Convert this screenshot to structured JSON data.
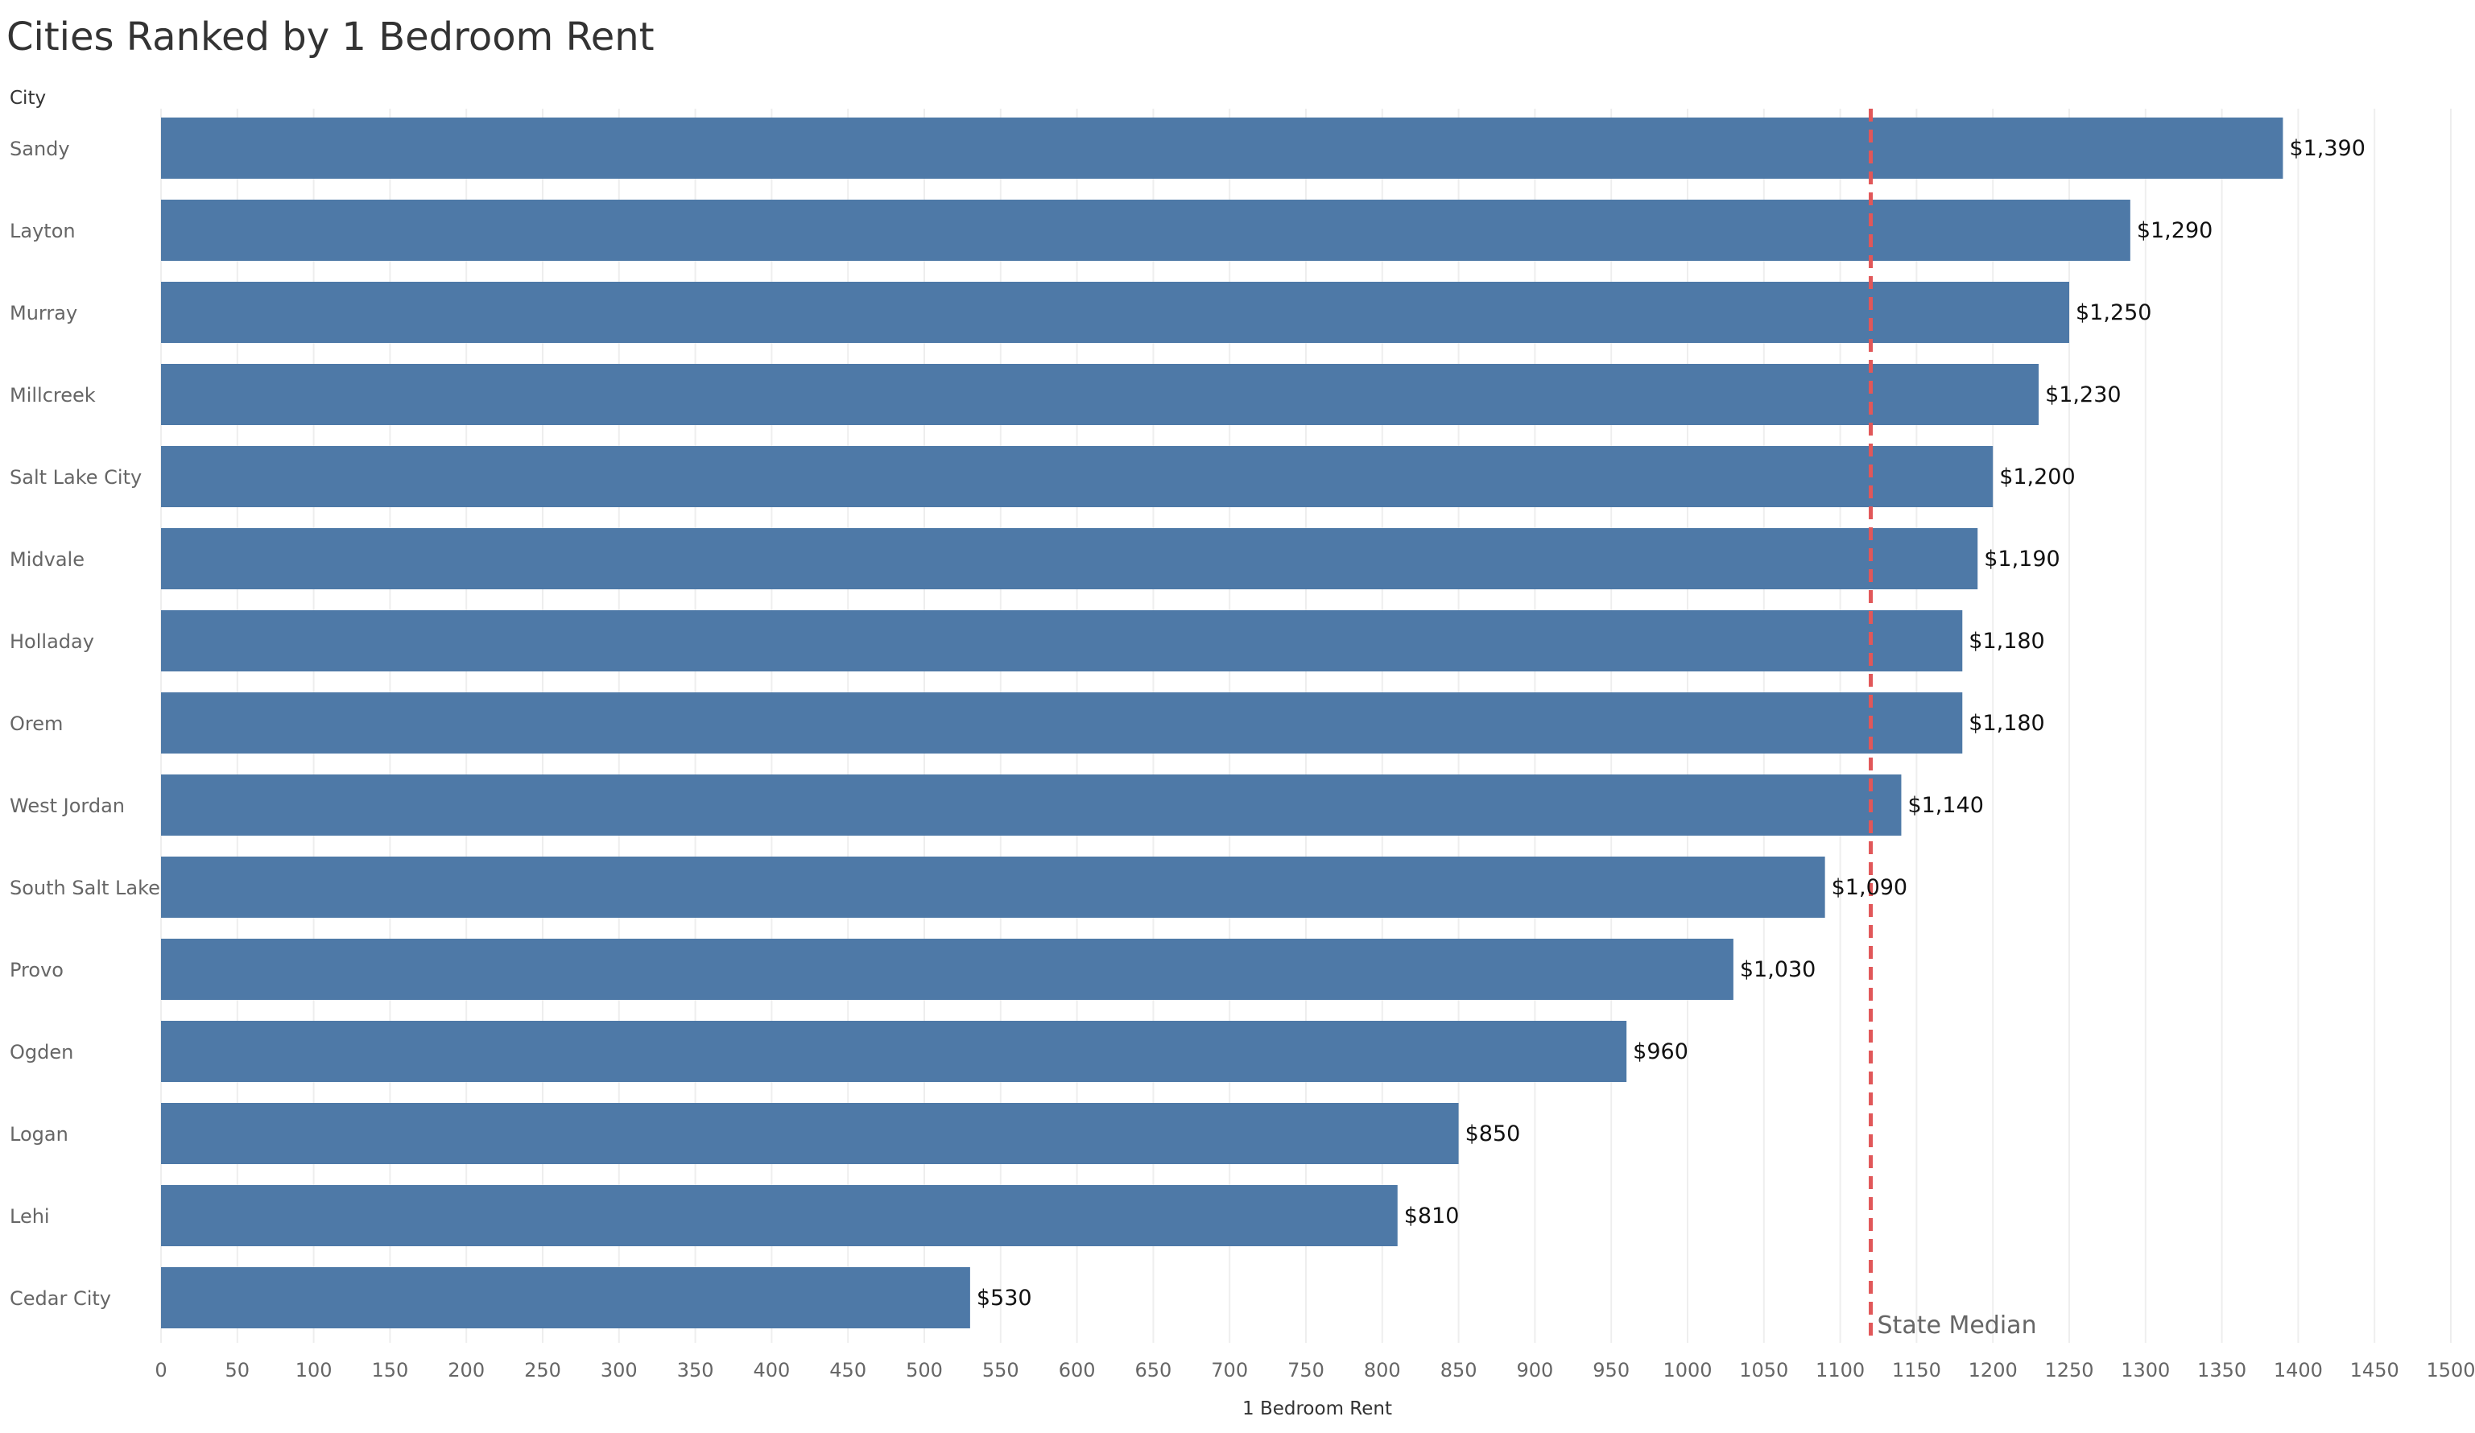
{
  "chart_data": {
    "type": "bar",
    "orientation": "horizontal",
    "title": "Cities Ranked by 1 Bedroom Rent",
    "row_header": "City",
    "xlabel": "1 Bedroom Rent",
    "xlim": [
      0,
      1500
    ],
    "x_ticks": [
      0,
      50,
      100,
      150,
      200,
      250,
      300,
      350,
      400,
      450,
      500,
      550,
      600,
      650,
      700,
      750,
      800,
      850,
      900,
      950,
      1000,
      1050,
      1100,
      1150,
      1200,
      1250,
      1300,
      1350,
      1400,
      1450,
      1500
    ],
    "grid": "vertical",
    "categories": [
      "Sandy",
      "Layton",
      "Murray",
      "Millcreek",
      "Salt Lake City",
      "Midvale",
      "Holladay",
      "Orem",
      "West Jordan",
      "South Salt Lake",
      "Provo",
      "Ogden",
      "Logan",
      "Lehi",
      "Cedar City"
    ],
    "values": [
      1390,
      1290,
      1250,
      1230,
      1200,
      1190,
      1180,
      1180,
      1140,
      1090,
      1030,
      960,
      850,
      810,
      530
    ],
    "value_labels": [
      "$1,390",
      "$1,290",
      "$1,250",
      "$1,230",
      "$1,200",
      "$1,190",
      "$1,180",
      "$1,180",
      "$1,140",
      "$1,090",
      "$1,030",
      "$960",
      "$850",
      "$810",
      "$530"
    ],
    "reference_line": {
      "label": "State Median",
      "value": 1120,
      "style": "dashed"
    },
    "colors": {
      "bar": "#4e79a7",
      "reference_line": "#e15759",
      "grid": "#eeeeee"
    }
  }
}
